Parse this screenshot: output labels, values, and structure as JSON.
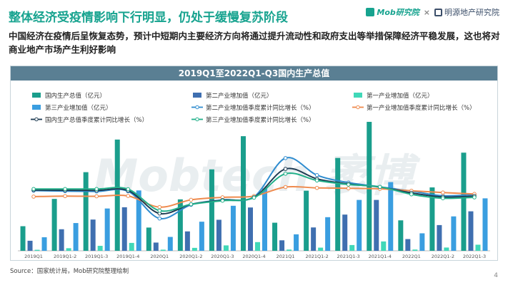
{
  "page": {
    "title": "整体经济受疫情影响下行明显，仍处于缓慢复苏阶段",
    "subtitle": "中国经济在疫情后呈恢复态势，预计中短期内主要经济方向将通过提升流动性和政府支出等举措保障经济平稳发展，这也将对商业地产市场产生利好影响",
    "logo_mob": "Mob研究院",
    "logo_sep": "×",
    "logo_partner": "明源地产研究院",
    "source": "Source：国家统计局，Mob研究院整理绘制",
    "page_number": "4",
    "watermark": "Mobtech 袤博"
  },
  "chart_data": {
    "type": "bar",
    "title": "2019Q1至2022Q1-Q3国内生产总值",
    "categories": [
      "2019Q1",
      "2019Q1-2",
      "2019Q1-3",
      "2019Q1-4",
      "2020Q1",
      "2020Q1-2",
      "2020Q1-3",
      "2020Q1-4",
      "2021Q1",
      "2021Q1-2",
      "2021Q1-3",
      "2021Q1-4",
      "2022Q1",
      "2022Q1-2",
      "2022Q1-3"
    ],
    "bar_ylim": [
      0,
      1200000
    ],
    "line_ylim": [
      -25,
      40
    ],
    "bar_series": [
      {
        "name": "国内生产总值（亿元）",
        "color": "#1a9e8c",
        "values": [
          218000,
          460000,
          697000,
          986000,
          206000,
          456000,
          722000,
          1016000,
          249000,
          533000,
          823000,
          1143000,
          270000,
          562000,
          870000
        ]
      },
      {
        "name": "第二产业增加值（亿元）",
        "color": "#3f6fb0",
        "values": [
          89000,
          191000,
          277000,
          386000,
          73000,
          172000,
          275000,
          384000,
          93000,
          207000,
          321000,
          451000,
          104000,
          228000,
          350000
        ]
      },
      {
        "name": "第一产业增加值（亿元）",
        "color": "#40d8b8",
        "values": [
          9000,
          23000,
          44000,
          70000,
          10000,
          26000,
          48000,
          77000,
          11000,
          28000,
          51000,
          83000,
          11000,
          29000,
          54000
        ]
      },
      {
        "name": "第三产业增加值（亿元）",
        "color": "#3a9ee0",
        "values": [
          120000,
          246000,
          375000,
          535000,
          123000,
          258000,
          399000,
          553000,
          146000,
          298000,
          451000,
          609000,
          155000,
          305000,
          465000
        ]
      }
    ],
    "line_series": [
      {
        "name": "第二产业增加值季度累计同比增长（%）",
        "color": "#2f8ccf",
        "values": [
          6.1,
          5.8,
          5.6,
          5.7,
          -9.6,
          -1.9,
          0.9,
          2.6,
          24.4,
          14.8,
          10.6,
          8.2,
          5.8,
          3.2,
          3.9
        ]
      },
      {
        "name": "第一产业增加值季度累计同比增长（%）",
        "color": "#ef8a4d",
        "values": [
          2.7,
          3.0,
          2.9,
          3.1,
          -3.2,
          0.9,
          2.3,
          3.0,
          8.1,
          7.6,
          7.4,
          7.1,
          6.0,
          5.0,
          4.2
        ]
      },
      {
        "name": "国内生产总值季度累计同比增长（%）",
        "color": "#1e3b52",
        "values": [
          6.4,
          6.3,
          6.2,
          6.1,
          -6.8,
          -1.6,
          0.7,
          2.3,
          18.3,
          12.7,
          9.8,
          8.1,
          4.8,
          2.5,
          3.0
        ]
      },
      {
        "name": "第三产业增加值季度累计同比增长（%）",
        "color": "#22b08a",
        "values": [
          7.0,
          7.0,
          7.0,
          6.9,
          -5.2,
          -1.6,
          0.4,
          2.1,
          15.6,
          11.8,
          9.5,
          8.2,
          4.0,
          1.8,
          2.3
        ]
      }
    ]
  }
}
